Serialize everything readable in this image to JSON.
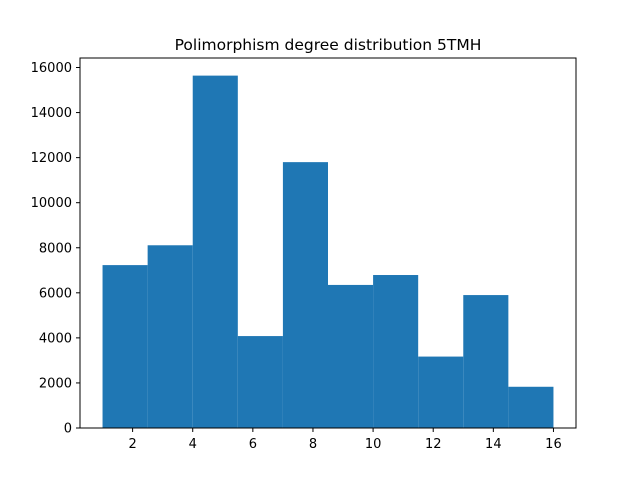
{
  "chart_data": {
    "type": "bar",
    "title": "Polimorphism degree distribution 5TMH",
    "xlabel": "",
    "ylabel": "",
    "bin_edges": [
      1,
      2.5,
      4,
      5.5,
      7,
      8.5,
      10,
      11.5,
      13,
      14.5,
      16
    ],
    "values": [
      7230,
      8110,
      15640,
      4080,
      11800,
      6350,
      6790,
      3170,
      5900,
      1830
    ],
    "xlim": [
      0.25,
      16.75
    ],
    "ylim": [
      0,
      16422
    ],
    "xticks": [
      2,
      4,
      6,
      8,
      10,
      12,
      14,
      16
    ],
    "yticks": [
      0,
      2000,
      4000,
      6000,
      8000,
      10000,
      12000,
      14000,
      16000
    ],
    "bar_color": "#1f77b4"
  }
}
